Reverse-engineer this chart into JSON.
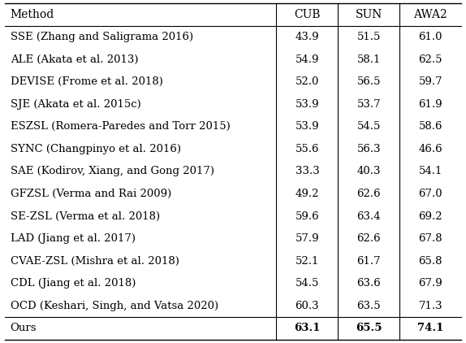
{
  "col_headers": [
    "Method",
    "CUB",
    "SUN",
    "AWA2"
  ],
  "rows": [
    [
      "SSE (Zhang and Saligrama 2016)",
      "43.9",
      "51.5",
      "61.0"
    ],
    [
      "ALE (Akata et al. 2013)",
      "54.9",
      "58.1",
      "62.5"
    ],
    [
      "DEVISE (Frome et al. 2018)",
      "52.0",
      "56.5",
      "59.7"
    ],
    [
      "SJE (Akata et al. 2015c)",
      "53.9",
      "53.7",
      "61.9"
    ],
    [
      "ESZSL (Romera-Paredes and Torr 2015)",
      "53.9",
      "54.5",
      "58.6"
    ],
    [
      "SYNC (Changpinyo et al. 2016)",
      "55.6",
      "56.3",
      "46.6"
    ],
    [
      "SAE (Kodirov, Xiang, and Gong 2017)",
      "33.3",
      "40.3",
      "54.1"
    ],
    [
      "GFZSL (Verma and Rai 2009)",
      "49.2",
      "62.6",
      "67.0"
    ],
    [
      "SE-ZSL (Verma et al. 2018)",
      "59.6",
      "63.4",
      "69.2"
    ],
    [
      "LAD (Jiang et al. 2017)",
      "57.9",
      "62.6",
      "67.8"
    ],
    [
      "CVAE-ZSL (Mishra et al. 2018)",
      "52.1",
      "61.7",
      "65.8"
    ],
    [
      "CDL (Jiang et al. 2018)",
      "54.5",
      "63.6",
      "67.9"
    ],
    [
      "OCD (Keshari, Singh, and Vatsa 2020)",
      "60.3",
      "63.5",
      "71.3"
    ]
  ],
  "last_row": [
    "Ours",
    "63.1",
    "65.5",
    "74.1"
  ],
  "bg_color": "#ffffff",
  "text_color": "#000000",
  "header_fontsize": 10.0,
  "body_fontsize": 9.5,
  "figsize": [
    5.74,
    4.22
  ]
}
